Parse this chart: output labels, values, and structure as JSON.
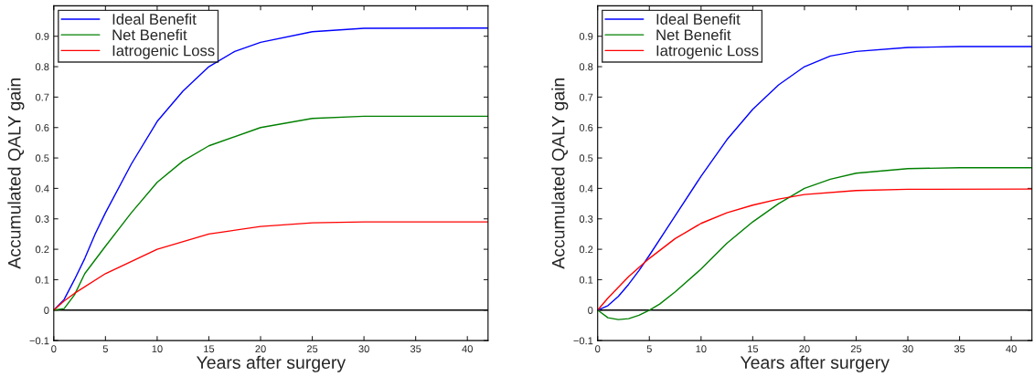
{
  "chart_data": [
    {
      "type": "line",
      "xlabel": "Years after surgery",
      "ylabel": "Accumulated QALY gain",
      "xlim": [
        0,
        42
      ],
      "ylim": [
        -0.1,
        1.0
      ],
      "xticks": [
        0,
        5,
        10,
        15,
        20,
        25,
        30,
        35,
        40
      ],
      "yticks": [
        -0.1,
        0,
        0.1,
        0.2,
        0.3,
        0.4,
        0.5,
        0.6,
        0.7,
        0.8,
        0.9
      ],
      "grid": false,
      "legend": "top left",
      "marker": "none",
      "line_style": "solid",
      "ref_lines": [
        {
          "axis": "y",
          "value": 0,
          "color": "#000000"
        }
      ],
      "series": [
        {
          "name": "Ideal Benefit",
          "color": "#0000ff",
          "x": [
            0,
            1,
            2,
            3,
            4,
            5,
            7.5,
            10,
            12.5,
            15,
            17.5,
            20,
            25,
            30,
            42
          ],
          "values": [
            0,
            0.035,
            0.1,
            0.17,
            0.25,
            0.32,
            0.48,
            0.62,
            0.72,
            0.8,
            0.85,
            0.88,
            0.915,
            0.926,
            0.927
          ]
        },
        {
          "name": "Net Benefit",
          "color": "#008000",
          "x": [
            0,
            1,
            2,
            3,
            5,
            7.5,
            10,
            12.5,
            15,
            20,
            25,
            30,
            42
          ],
          "values": [
            0,
            0.005,
            0.05,
            0.12,
            0.21,
            0.32,
            0.42,
            0.49,
            0.54,
            0.6,
            0.63,
            0.637,
            0.637
          ]
        },
        {
          "name": "Iatrogenic Loss",
          "color": "#ff0000",
          "x": [
            0,
            1,
            2,
            5,
            10,
            15,
            20,
            25,
            30,
            42
          ],
          "values": [
            0,
            0.03,
            0.055,
            0.12,
            0.2,
            0.25,
            0.275,
            0.287,
            0.29,
            0.29
          ]
        }
      ]
    },
    {
      "type": "line",
      "xlabel": "Years after surgery",
      "ylabel": "Accumulated QALY gain",
      "xlim": [
        0,
        42
      ],
      "ylim": [
        -0.1,
        1.0
      ],
      "xticks": [
        0,
        5,
        10,
        15,
        20,
        25,
        30,
        35,
        40
      ],
      "yticks": [
        -0.1,
        0,
        0.1,
        0.2,
        0.3,
        0.4,
        0.5,
        0.6,
        0.7,
        0.8,
        0.9
      ],
      "grid": false,
      "legend": "top left",
      "marker": "none",
      "line_style": "solid",
      "ref_lines": [
        {
          "axis": "y",
          "value": 0,
          "color": "#000000"
        }
      ],
      "series": [
        {
          "name": "Ideal Benefit",
          "color": "#0000ff",
          "x": [
            0,
            1,
            2,
            3,
            4,
            5,
            7.5,
            10,
            12.5,
            15,
            17.5,
            20,
            22.5,
            25,
            30,
            35,
            42
          ],
          "values": [
            0,
            0.015,
            0.045,
            0.085,
            0.13,
            0.18,
            0.31,
            0.44,
            0.56,
            0.66,
            0.74,
            0.8,
            0.835,
            0.85,
            0.863,
            0.866,
            0.866
          ]
        },
        {
          "name": "Net Benefit",
          "color": "#008000",
          "x": [
            0,
            1,
            2,
            3,
            4,
            5,
            6,
            7.5,
            10,
            12.5,
            15,
            17.5,
            20,
            22.5,
            25,
            30,
            35,
            42
          ],
          "values": [
            0,
            -0.025,
            -0.031,
            -0.028,
            -0.017,
            0,
            0.02,
            0.06,
            0.135,
            0.22,
            0.29,
            0.35,
            0.4,
            0.43,
            0.45,
            0.465,
            0.468,
            0.468
          ]
        },
        {
          "name": "Iatrogenic Loss",
          "color": "#ff0000",
          "x": [
            0,
            1,
            2,
            3,
            5,
            7.5,
            10,
            12.5,
            15,
            17.5,
            20,
            25,
            30,
            42
          ],
          "values": [
            0,
            0.04,
            0.075,
            0.11,
            0.17,
            0.235,
            0.285,
            0.32,
            0.345,
            0.365,
            0.38,
            0.393,
            0.397,
            0.398
          ]
        }
      ]
    }
  ]
}
